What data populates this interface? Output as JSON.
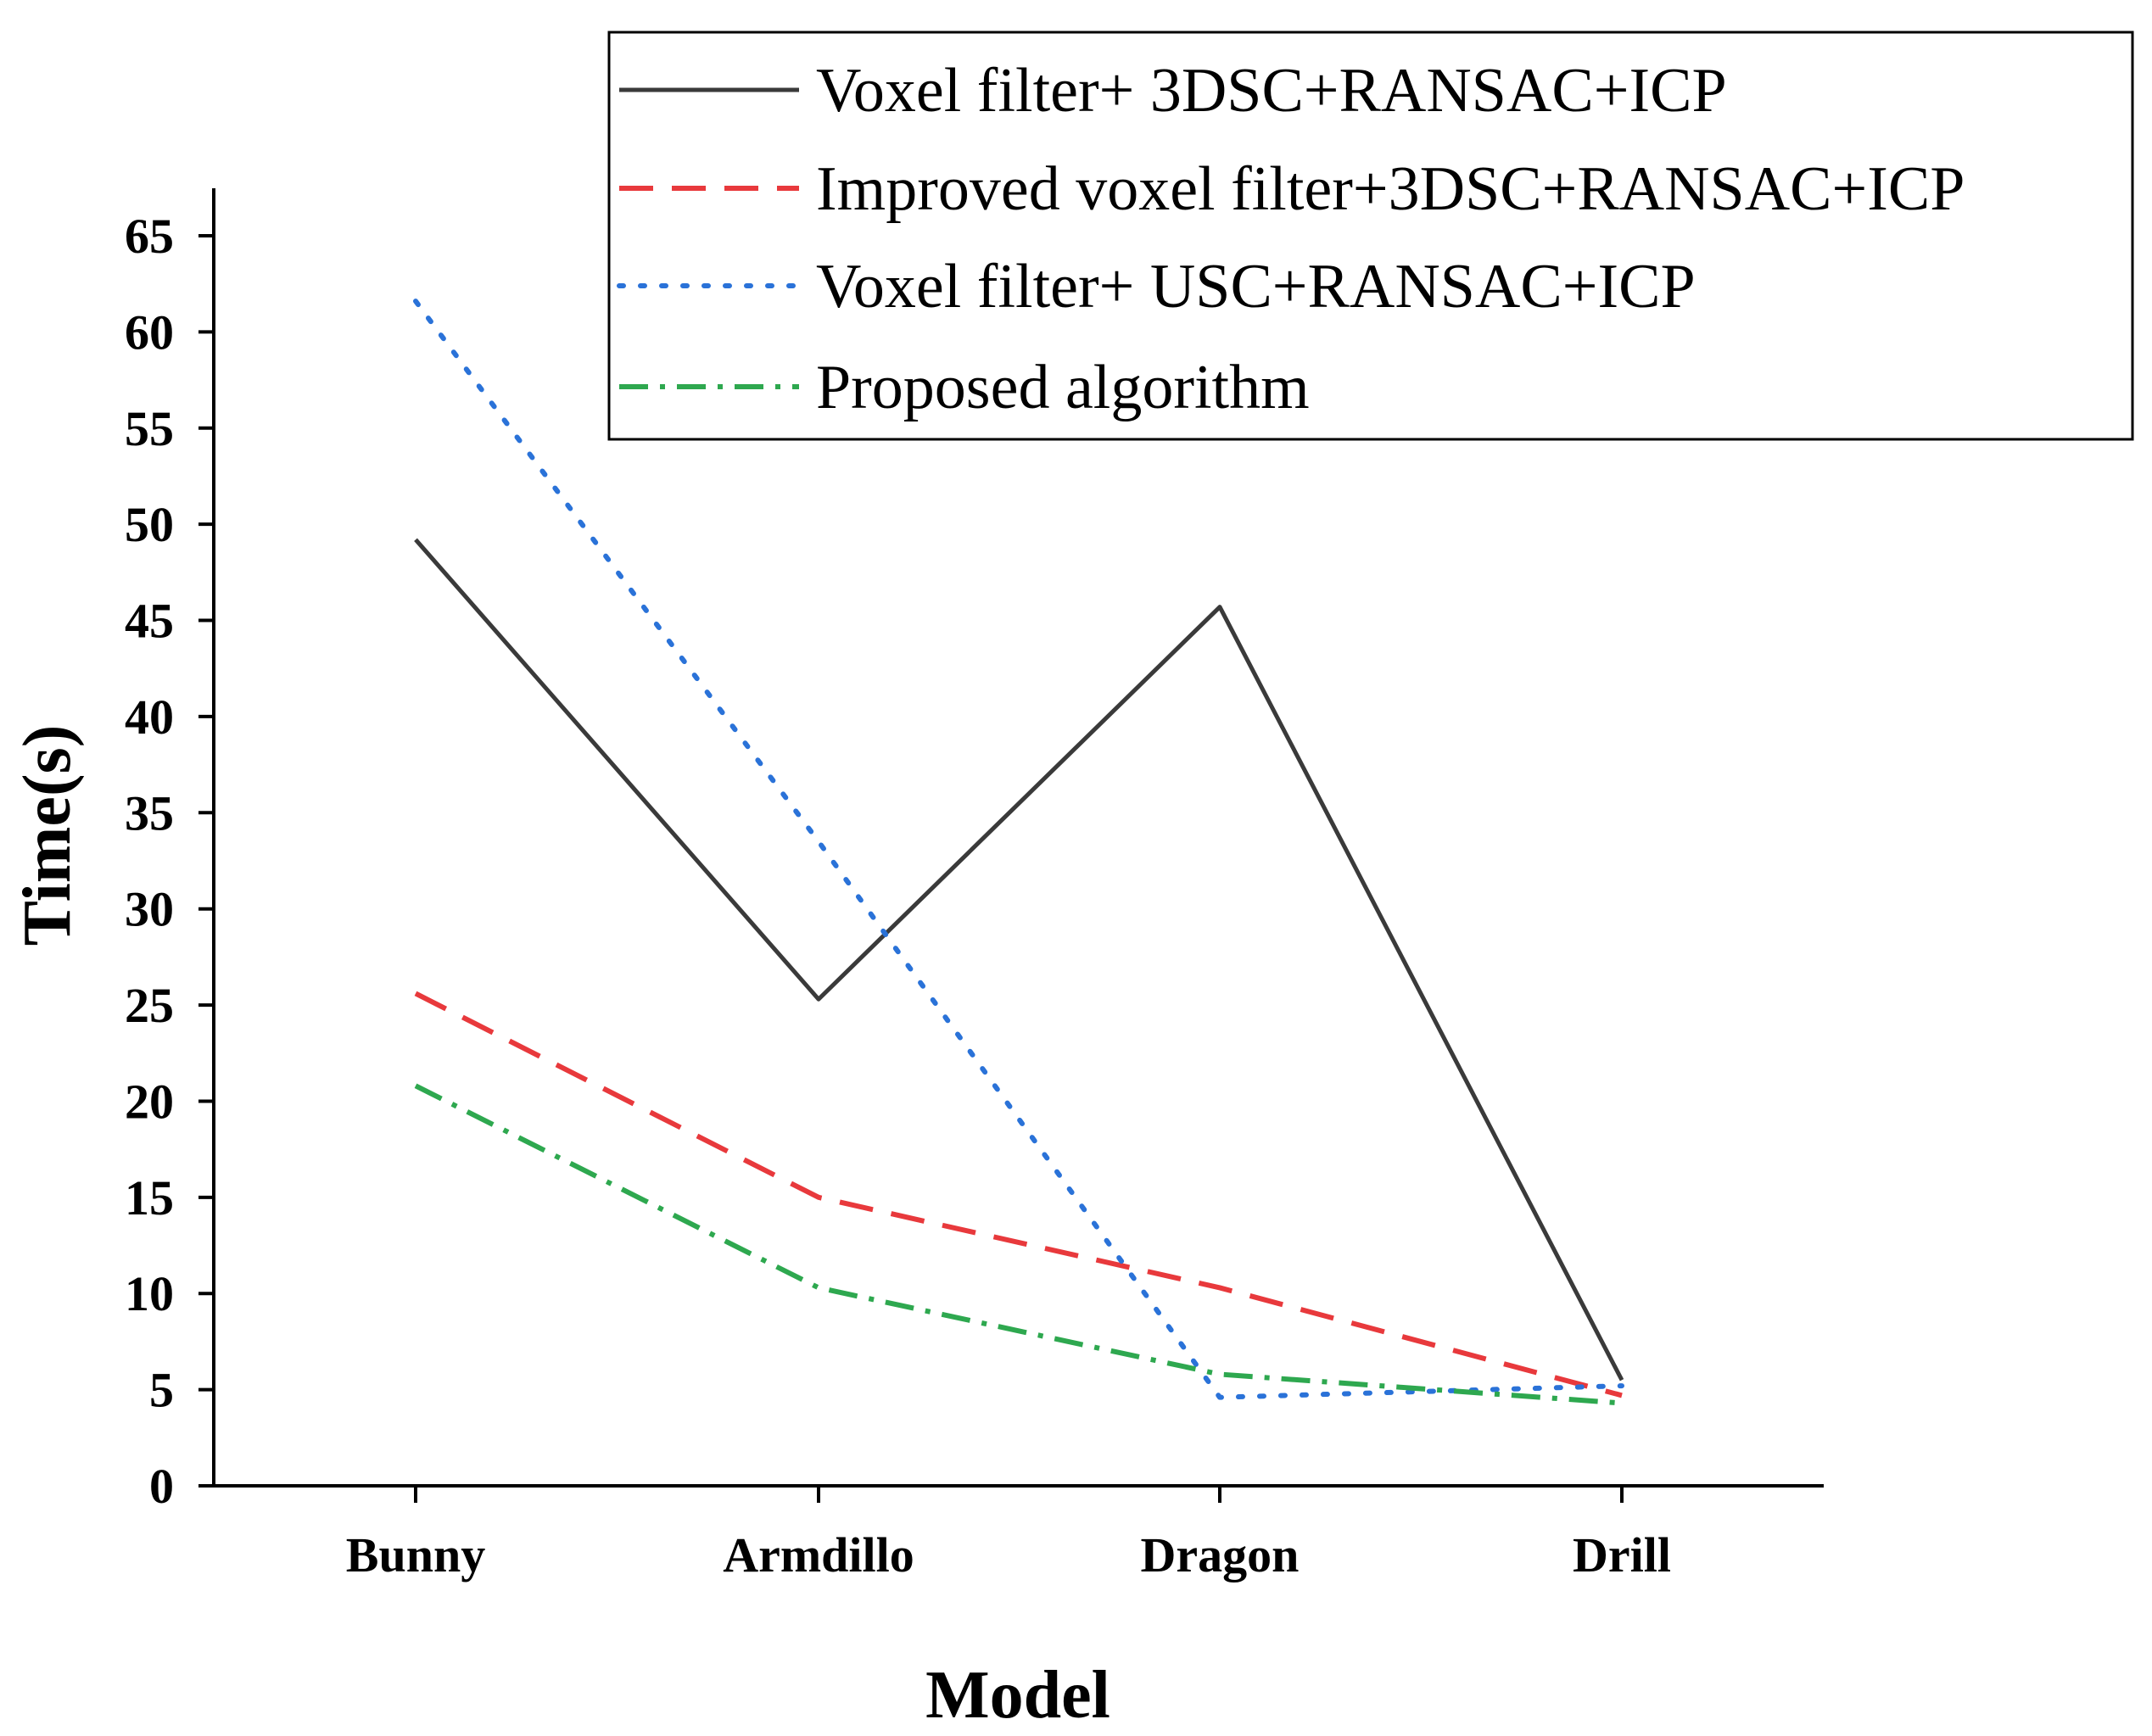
{
  "chart_data": {
    "type": "line",
    "title": "",
    "xlabel": "Model",
    "ylabel": "Time(s)",
    "categories": [
      "Bunny",
      "Armdillo",
      "Dragon",
      "Drill"
    ],
    "ylim": [
      0,
      65
    ],
    "yticks": [
      0,
      5,
      10,
      15,
      20,
      25,
      30,
      35,
      40,
      45,
      50,
      55,
      60,
      65
    ],
    "grid": false,
    "legend_position": "top-right",
    "series": [
      {
        "name": "Voxel filter+ 3DSC+RANSAC+ICP",
        "values": [
          49.2,
          25.3,
          45.7,
          5.5
        ],
        "color": "#3a3a3a",
        "style": "solid"
      },
      {
        "name": "Improved voxel filter+3DSC+RANSAC+ICP",
        "values": [
          25.6,
          15.0,
          10.3,
          4.7
        ],
        "color": "#e8393c",
        "style": "dashed"
      },
      {
        "name": "Voxel filter+ USC+RANSAC+ICP",
        "values": [
          61.6,
          33.5,
          4.6,
          5.2
        ],
        "color": "#2a72d8",
        "style": "dotted"
      },
      {
        "name": "Proposed algorithm",
        "values": [
          20.8,
          10.3,
          5.8,
          4.3
        ],
        "color": "#2ea84f",
        "style": "dashdot"
      }
    ]
  }
}
